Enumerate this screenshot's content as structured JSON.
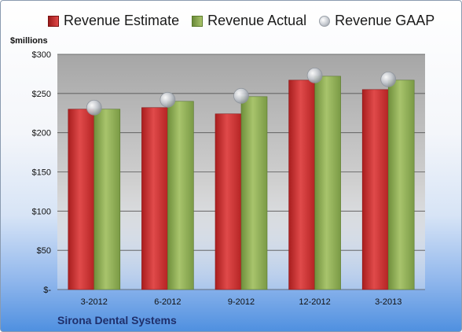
{
  "legend": {
    "estimate": "Revenue Estimate",
    "actual": "Revenue Actual",
    "gaap": "Revenue GAAP"
  },
  "units_label": "$millions",
  "company": "Sirona Dental Systems",
  "colors": {
    "estimate": "#cc2a2a",
    "actual": "#8fb04f",
    "gaap": "#c0c4ca"
  },
  "chart_data": {
    "type": "bar",
    "categories": [
      "3-2012",
      "6-2012",
      "9-2012",
      "12-2012",
      "3-2013"
    ],
    "series": [
      {
        "name": "Revenue Estimate",
        "values": [
          230,
          232,
          224,
          267,
          255
        ]
      },
      {
        "name": "Revenue Actual",
        "values": [
          230,
          240,
          246,
          272,
          267
        ]
      },
      {
        "name": "Revenue GAAP",
        "type": "scatter",
        "values": [
          232,
          242,
          247,
          273,
          268
        ]
      }
    ],
    "ylabel": "$millions",
    "ylim": [
      0,
      300
    ],
    "yticks": [
      0,
      50,
      100,
      150,
      200,
      250,
      300
    ],
    "ytick_labels": [
      "$-",
      "$50",
      "$100",
      "$150",
      "$200",
      "$250",
      "$300"
    ],
    "grid": true,
    "legend_position": "top"
  }
}
